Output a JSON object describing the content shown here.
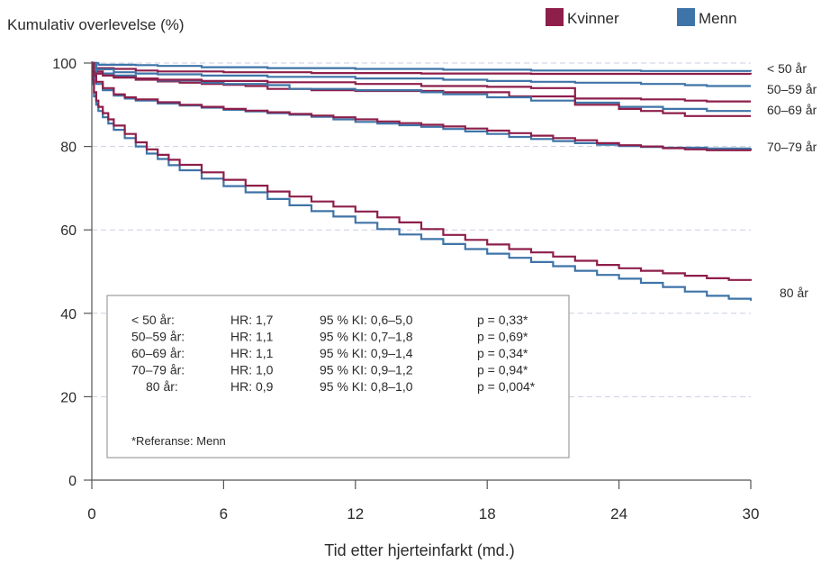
{
  "chart_data": {
    "type": "line",
    "ylabel": "Kumulativ overlevelse (%)",
    "xlabel": "Tid etter hjerteinfarkt (md.)",
    "xlim": [
      0,
      30
    ],
    "ylim": [
      0,
      100
    ],
    "x_ticks": [
      "0",
      "6",
      "12",
      "18",
      "24",
      "30"
    ],
    "y_ticks": [
      "0",
      "20",
      "40",
      "60",
      "80",
      "100"
    ],
    "grid": "horizontal dashed at 20, 40, 60, 80, 100",
    "legend": {
      "placement": "top-right",
      "items": [
        {
          "name": "Kvinner",
          "color": "#8e1e4a"
        },
        {
          "name": "Menn",
          "color": "#3f74a8"
        }
      ]
    },
    "colors": {
      "kvinner": "#8e1e4a",
      "menn": "#3f74a8",
      "grid": "#c9cfe0",
      "axis": "#555555"
    },
    "groups": [
      {
        "label": "< 50 år",
        "label_y": 98.5,
        "kvinner": [
          [
            0,
            100
          ],
          [
            0.2,
            98.8
          ],
          [
            1,
            98.6
          ],
          [
            2,
            98.2
          ],
          [
            3,
            98
          ],
          [
            6,
            97.8
          ],
          [
            10,
            97.6
          ],
          [
            15,
            97.5
          ],
          [
            20,
            97.4
          ],
          [
            30,
            97.3
          ]
        ],
        "menn": [
          [
            0,
            100
          ],
          [
            0.3,
            99.6
          ],
          [
            2,
            99.5
          ],
          [
            3,
            99.3
          ],
          [
            5,
            99
          ],
          [
            8,
            98.8
          ],
          [
            12,
            98.6
          ],
          [
            16,
            98.4
          ],
          [
            20,
            98.2
          ],
          [
            25,
            98.1
          ],
          [
            30,
            98
          ]
        ]
      },
      {
        "label": "50–59 år",
        "label_y": 94,
        "kvinner": [
          [
            0,
            100
          ],
          [
            0.1,
            98
          ],
          [
            0.5,
            97.5
          ],
          [
            1,
            96.5
          ],
          [
            2,
            96
          ],
          [
            3,
            95.6
          ],
          [
            4,
            95.3
          ],
          [
            5,
            95
          ],
          [
            6,
            94.8
          ],
          [
            7,
            94.5
          ],
          [
            8,
            93.8
          ],
          [
            10,
            93.5
          ],
          [
            12,
            93.3
          ],
          [
            16,
            93
          ],
          [
            19,
            92
          ],
          [
            22,
            91.5
          ],
          [
            25,
            91.3
          ],
          [
            27,
            91
          ],
          [
            28,
            90.8
          ],
          [
            30,
            90.8
          ]
        ],
        "menn": [
          [
            0,
            100
          ],
          [
            0.2,
            98.5
          ],
          [
            1,
            97.8
          ],
          [
            2,
            97.5
          ],
          [
            3,
            97.3
          ],
          [
            5,
            97
          ],
          [
            8,
            96.7
          ],
          [
            12,
            96.3
          ],
          [
            16,
            96
          ],
          [
            18,
            95.7
          ],
          [
            20,
            95.5
          ],
          [
            22,
            95.3
          ],
          [
            25,
            95
          ],
          [
            27,
            94.7
          ],
          [
            28,
            94.5
          ],
          [
            30,
            94.5
          ]
        ]
      },
      {
        "label": "60–69 år",
        "label_y": 89,
        "kvinner": [
          [
            0,
            100
          ],
          [
            0.1,
            97.5
          ],
          [
            0.5,
            97
          ],
          [
            1,
            96.6
          ],
          [
            2,
            96.3
          ],
          [
            3,
            96
          ],
          [
            5,
            95.7
          ],
          [
            8,
            95.4
          ],
          [
            12,
            95
          ],
          [
            15,
            94.5
          ],
          [
            18,
            94.3
          ],
          [
            20,
            94
          ],
          [
            22,
            90
          ],
          [
            24,
            89
          ],
          [
            25,
            88.5
          ],
          [
            26,
            88
          ],
          [
            27,
            87.3
          ],
          [
            30,
            87.3
          ]
        ],
        "menn": [
          [
            0,
            100
          ],
          [
            0.2,
            97.5
          ],
          [
            1,
            97
          ],
          [
            2,
            96.3
          ],
          [
            3,
            95.8
          ],
          [
            5,
            95.3
          ],
          [
            6,
            95
          ],
          [
            8,
            94.7
          ],
          [
            9,
            93.8
          ],
          [
            12,
            93.5
          ],
          [
            15,
            93
          ],
          [
            16,
            92.5
          ],
          [
            18,
            91.8
          ],
          [
            20,
            91
          ],
          [
            22,
            90.5
          ],
          [
            24,
            89.5
          ],
          [
            26,
            89
          ],
          [
            28,
            88.5
          ],
          [
            30,
            88.5
          ]
        ]
      },
      {
        "label": "70–79 år",
        "label_y": 79.5,
        "kvinner": [
          [
            0,
            100
          ],
          [
            0.05,
            97
          ],
          [
            0.2,
            95.5
          ],
          [
            0.5,
            94
          ],
          [
            1,
            92.5
          ],
          [
            1.5,
            91.8
          ],
          [
            2,
            91.3
          ],
          [
            3,
            90.6
          ],
          [
            4,
            90
          ],
          [
            5,
            89.5
          ],
          [
            6,
            89
          ],
          [
            7,
            88.6
          ],
          [
            8,
            88.2
          ],
          [
            9,
            87.8
          ],
          [
            10,
            87.4
          ],
          [
            11,
            87
          ],
          [
            12,
            86.5
          ],
          [
            13,
            86
          ],
          [
            14,
            85.6
          ],
          [
            15,
            85.2
          ],
          [
            16,
            84.8
          ],
          [
            17,
            84.3
          ],
          [
            18,
            83.8
          ],
          [
            19,
            83.2
          ],
          [
            20,
            82.6
          ],
          [
            21,
            82
          ],
          [
            22,
            81.5
          ],
          [
            23,
            80.8
          ],
          [
            24,
            80.3
          ],
          [
            25,
            80
          ],
          [
            26,
            79.6
          ],
          [
            27,
            79.3
          ],
          [
            28,
            79.1
          ],
          [
            30,
            79
          ]
        ],
        "menn": [
          [
            0,
            100
          ],
          [
            0.05,
            96.5
          ],
          [
            0.2,
            95
          ],
          [
            0.5,
            93.5
          ],
          [
            1,
            92.2
          ],
          [
            1.5,
            91.5
          ],
          [
            2,
            91
          ],
          [
            3,
            90.3
          ],
          [
            4,
            89.8
          ],
          [
            5,
            89.3
          ],
          [
            6,
            88.8
          ],
          [
            7,
            88.4
          ],
          [
            8,
            88
          ],
          [
            9,
            87.6
          ],
          [
            10,
            87.1
          ],
          [
            11,
            86.5
          ],
          [
            12,
            85.9
          ],
          [
            13,
            85.5
          ],
          [
            14,
            85.1
          ],
          [
            15,
            84.7
          ],
          [
            16,
            84.2
          ],
          [
            17,
            83.6
          ],
          [
            18,
            83
          ],
          [
            19,
            82.3
          ],
          [
            20,
            81.8
          ],
          [
            21,
            81.3
          ],
          [
            22,
            80.8
          ],
          [
            23,
            80.4
          ],
          [
            24,
            80.1
          ],
          [
            25,
            79.9
          ],
          [
            26,
            79.7
          ],
          [
            28,
            79.5
          ],
          [
            30,
            79.6
          ]
        ]
      },
      {
        "label": "80 år",
        "label_y": 46.5,
        "kvinner": [
          [
            0,
            100
          ],
          [
            0.05,
            96
          ],
          [
            0.1,
            93
          ],
          [
            0.2,
            91
          ],
          [
            0.3,
            89.5
          ],
          [
            0.5,
            88
          ],
          [
            0.75,
            86.5
          ],
          [
            1,
            85
          ],
          [
            1.5,
            83
          ],
          [
            2,
            81
          ],
          [
            2.5,
            79.3
          ],
          [
            3,
            78
          ],
          [
            3.5,
            76.8
          ],
          [
            4,
            75.6
          ],
          [
            5,
            73.8
          ],
          [
            6,
            72
          ],
          [
            7,
            70.6
          ],
          [
            8,
            69.2
          ],
          [
            9,
            68
          ],
          [
            10,
            66.8
          ],
          [
            11,
            65.6
          ],
          [
            12,
            64.4
          ],
          [
            13,
            63
          ],
          [
            14,
            61.8
          ],
          [
            15,
            60.2
          ],
          [
            16,
            58.8
          ],
          [
            17,
            57.6
          ],
          [
            18,
            56.5
          ],
          [
            19,
            55.4
          ],
          [
            20,
            54.6
          ],
          [
            21,
            53.6
          ],
          [
            22,
            52.6
          ],
          [
            23,
            51.6
          ],
          [
            24,
            50.8
          ],
          [
            25,
            50.2
          ],
          [
            26,
            49.6
          ],
          [
            27,
            49
          ],
          [
            28,
            48.4
          ],
          [
            29,
            48
          ],
          [
            30,
            47.8
          ]
        ],
        "menn": [
          [
            0,
            100
          ],
          [
            0.05,
            95
          ],
          [
            0.1,
            92
          ],
          [
            0.2,
            90
          ],
          [
            0.3,
            88.5
          ],
          [
            0.5,
            87
          ],
          [
            0.75,
            85.5
          ],
          [
            1,
            84
          ],
          [
            1.5,
            82
          ],
          [
            2,
            80
          ],
          [
            2.5,
            78.3
          ],
          [
            3,
            77
          ],
          [
            3.5,
            75.5
          ],
          [
            4,
            74.3
          ],
          [
            5,
            72.3
          ],
          [
            6,
            70.5
          ],
          [
            7,
            69
          ],
          [
            8,
            67.4
          ],
          [
            9,
            65.9
          ],
          [
            10,
            64.5
          ],
          [
            11,
            63.2
          ],
          [
            12,
            61.7
          ],
          [
            13,
            60.2
          ],
          [
            14,
            58.9
          ],
          [
            15,
            57.8
          ],
          [
            16,
            56.6
          ],
          [
            17,
            55.4
          ],
          [
            18,
            54.3
          ],
          [
            19,
            53.3
          ],
          [
            20,
            52.3
          ],
          [
            21,
            51.3
          ],
          [
            22,
            50.2
          ],
          [
            23,
            49.2
          ],
          [
            24,
            48.3
          ],
          [
            25,
            47.3
          ],
          [
            26,
            46.3
          ],
          [
            27,
            45.2
          ],
          [
            28,
            44.2
          ],
          [
            29,
            43.5
          ],
          [
            30,
            43
          ]
        ]
      }
    ],
    "stats_box": {
      "rows": [
        {
          "group": "< 50 år:",
          "hr": "HR: 1,7",
          "ci": "95 % KI: 0,6–5,0",
          "p": "p = 0,33*"
        },
        {
          "group": "50–59 år:",
          "hr": "HR: 1,1",
          "ci": "95 % KI: 0,7–1,8",
          "p": "p = 0,69*"
        },
        {
          "group": "60–69 år:",
          "hr": "HR: 1,1",
          "ci": "95 % KI: 0,9–1,4",
          "p": "p = 0,34*"
        },
        {
          "group": "70–79 år:",
          "hr": "HR: 1,0",
          "ci": "95 % KI: 0,9–1,2",
          "p": "p = 0,94*"
        },
        {
          "group": "80 år:",
          "hr": "HR: 0,9",
          "ci": "95 % KI: 0,8–1,0",
          "p": "p = 0,004*"
        }
      ],
      "footnote": "*Referanse: Menn"
    }
  }
}
